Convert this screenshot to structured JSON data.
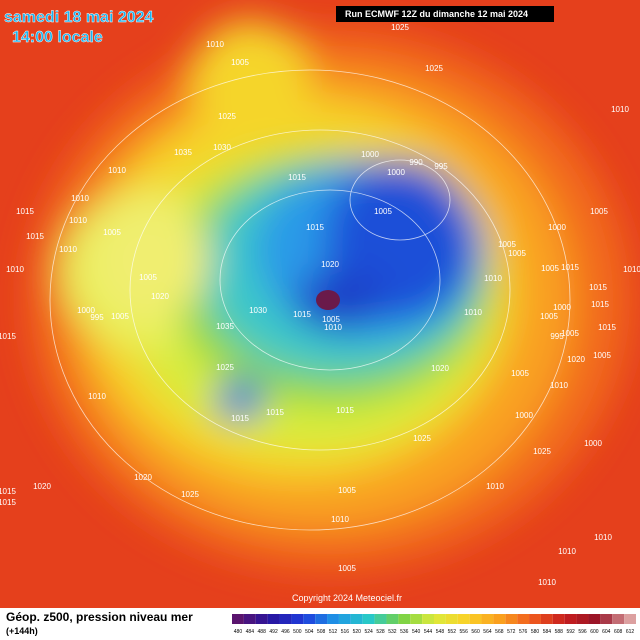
{
  "header": {
    "date": "samedi 18 mai 2024",
    "time": "14:00 locale",
    "run": "Run ECMWF 12Z du dimanche 12 mai 2024"
  },
  "footer": {
    "title": "Géop. z500, pression niveau mer",
    "lead": "(+144h)",
    "copyright": "Copyright 2024 Meteociel.fr"
  },
  "scale": {
    "labels": [
      480,
      484,
      488,
      492,
      496,
      500,
      504,
      508,
      512,
      516,
      520,
      524,
      528,
      532,
      536,
      540,
      544,
      548,
      552,
      556,
      560,
      564,
      568,
      572,
      576,
      580,
      584,
      588,
      592,
      596,
      600,
      604,
      608,
      612
    ]
  },
  "isobars": {
    "labels": [
      1025,
      1025,
      1010,
      1005,
      1025,
      1030,
      1035,
      1010,
      1010,
      1015,
      1000,
      990,
      995,
      1000,
      1005,
      1015,
      1010,
      1015,
      1010,
      1005,
      1015,
      1010,
      1010,
      1005,
      1020,
      1020,
      1000,
      995,
      1005,
      1030,
      1015,
      1005,
      1010,
      1010,
      1035,
      1015,
      1010,
      1025,
      1020,
      1015,
      1015,
      1015,
      1025,
      1005,
      1005,
      1000,
      1005,
      1010,
      1005,
      1015,
      1010,
      1015,
      1015,
      1000,
      1005,
      1005,
      1015,
      995,
      1020,
      1005,
      1010,
      1005,
      1000,
      1000,
      1025,
      1020,
      1020,
      1025,
      1015,
      1015,
      1005,
      1010,
      1010,
      1010,
      1005,
      1010,
      1010
    ]
  }
}
